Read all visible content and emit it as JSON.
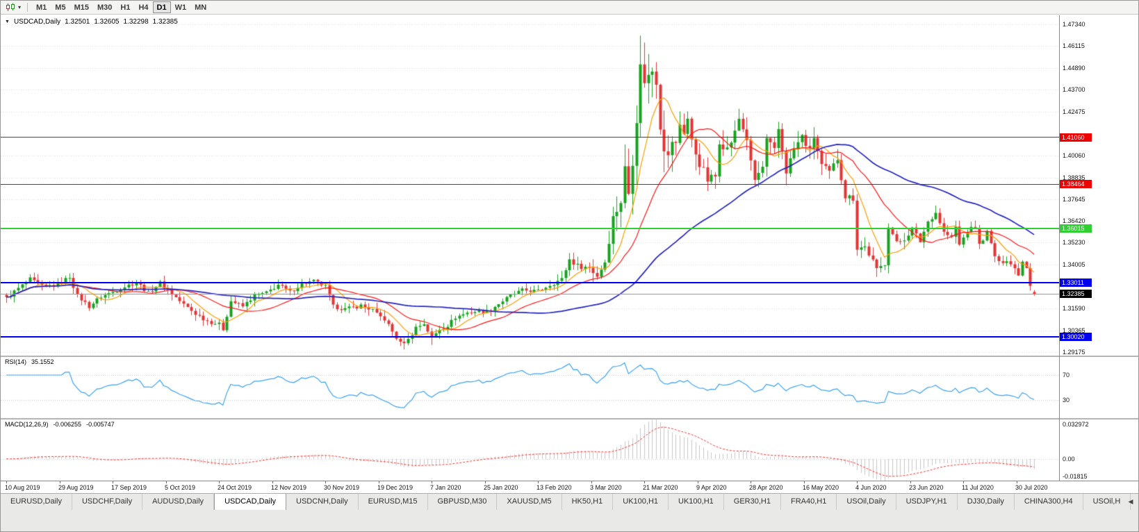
{
  "toolbar": {
    "timeframes": [
      "M1",
      "M5",
      "M15",
      "M30",
      "H1",
      "H4",
      "D1",
      "W1",
      "MN"
    ],
    "active_timeframe": "D1"
  },
  "chart": {
    "ohlc_line": {
      "symbol": "USDCAD,Daily",
      "open": "1.32501",
      "high": "1.32605",
      "low": "1.32298",
      "close": "1.32385"
    }
  },
  "indicators": {
    "rsi": {
      "label": "RSI(14)",
      "value": "35.1552",
      "period": 14,
      "axis_labels": [
        "70",
        "30"
      ],
      "line_color": "#3aa0f0"
    },
    "macd": {
      "label": "MACD(12,26,9)",
      "value_main": "-0.006255",
      "value_signal": "-0.005747",
      "fast": 12,
      "slow": 26,
      "signal": 9,
      "axis_labels": [
        "0.032972",
        "0.00",
        "-0.01815"
      ],
      "hist_color": "#c6c6c6",
      "signal_color": "#ff2d2d"
    }
  },
  "tabs": {
    "active": "USDCAD,Daily",
    "items": [
      "EURUSD,Daily",
      "USDCHF,Daily",
      "AUDUSD,Daily",
      "USDCAD,Daily",
      "USDCNH,Daily",
      "EURUSD,M15",
      "GBPUSD,M30",
      "XAUUSD,M5",
      "HK50,H1",
      "UK100,H1",
      "UK100,H1",
      "GER30,H1",
      "FRA40,H1",
      "USOil,Daily",
      "USDJPY,H1",
      "DJ30,Daily",
      "CHINA300,H4",
      "USOil,H"
    ],
    "scroll_left_icon": "◀"
  },
  "chart_data": {
    "type": "candlestick",
    "symbol": "USDCAD",
    "timeframe": "Daily",
    "candle_count": 262,
    "current_price": 1.32385,
    "up_color": "#17a21f",
    "down_color": "#e23535",
    "y_axis_labels": [
      "1.47340",
      "1.46115",
      "1.44890",
      "1.43700",
      "1.42475",
      "1.40060",
      "1.38835",
      "1.37645",
      "1.36420",
      "1.35230",
      "1.34005",
      "1.31590",
      "1.30365",
      "1.29175"
    ],
    "x_labels": [
      "10 Aug 2019",
      "29 Aug 2019",
      "17 Sep 2019",
      "5 Oct 2019",
      "24 Oct 2019",
      "12 Nov 2019",
      "30 Nov 2019",
      "19 Dec 2019",
      "7 Jan 2020",
      "25 Jan 2020",
      "13 Feb 2020",
      "3 Mar 2020",
      "21 Mar 2020",
      "9 Apr 2020",
      "28 Apr 2020",
      "16 May 2020",
      "4 Jun 2020",
      "23 Jun 2020",
      "11 Jul 2020",
      "30 Jul 2020"
    ],
    "levels": [
      {
        "price": 1.4106,
        "color": "#ee0000",
        "width": 1
      },
      {
        "price": 1.38464,
        "color": "#ee0000",
        "width": 1
      },
      {
        "price": 1.36015,
        "color": "#2fd032",
        "width": 2
      },
      {
        "price": 1.33011,
        "color": "#0000ee",
        "width": 2
      },
      {
        "price": 1.3002,
        "color": "#0000ee",
        "width": 2
      }
    ],
    "extreme_high": {
      "index": 161,
      "price": 1.4669
    },
    "extreme_low": {
      "index": 100,
      "price": 1.2951
    },
    "last_candle": {
      "o": 1.32501,
      "h": 1.32605,
      "l": 1.32298,
      "c": 1.32385
    },
    "overrides": [
      {
        "i": 161,
        "h": 1.4669
      },
      {
        "i": 100,
        "l": 1.2951
      },
      {
        "i": 108,
        "l": 1.2957
      }
    ],
    "moving_averages": [
      {
        "name": "fast",
        "period": 8,
        "color": "#ff9b00",
        "width": 1.2
      },
      {
        "name": "medium",
        "period": 20,
        "color": "#ff1414",
        "width": 1.2
      },
      {
        "name": "slow",
        "period": 55,
        "color": "#2424bd",
        "width": 1.7
      }
    ],
    "volatility_anchors": [
      [
        0,
        0.0045
      ],
      [
        54,
        0.0045
      ],
      [
        80,
        0.004
      ],
      [
        96,
        0.005
      ],
      [
        110,
        0.0042
      ],
      [
        135,
        0.004
      ],
      [
        146,
        0.006
      ],
      [
        152,
        0.009
      ],
      [
        158,
        0.0165
      ],
      [
        163,
        0.0185
      ],
      [
        168,
        0.015
      ],
      [
        175,
        0.0115
      ],
      [
        185,
        0.0095
      ],
      [
        200,
        0.0085
      ],
      [
        212,
        0.0075
      ],
      [
        220,
        0.0065
      ],
      [
        232,
        0.0052
      ],
      [
        245,
        0.0048
      ],
      [
        261,
        0.0042
      ]
    ],
    "close_anchors": [
      [
        0,
        1.3215
      ],
      [
        3,
        1.327
      ],
      [
        6,
        1.332
      ],
      [
        9,
        1.328
      ],
      [
        13,
        1.329
      ],
      [
        16,
        1.3335
      ],
      [
        18,
        1.323
      ],
      [
        21,
        1.317
      ],
      [
        24,
        1.3225
      ],
      [
        27,
        1.325
      ],
      [
        30,
        1.328
      ],
      [
        33,
        1.3305
      ],
      [
        36,
        1.3245
      ],
      [
        39,
        1.33
      ],
      [
        42,
        1.324
      ],
      [
        45,
        1.318
      ],
      [
        48,
        1.313
      ],
      [
        51,
        1.309
      ],
      [
        54,
        1.307
      ],
      [
        55,
        1.3045
      ],
      [
        57,
        1.32
      ],
      [
        60,
        1.317
      ],
      [
        63,
        1.323
      ],
      [
        66,
        1.3245
      ],
      [
        69,
        1.329
      ],
      [
        72,
        1.325
      ],
      [
        75,
        1.3295
      ],
      [
        78,
        1.331
      ],
      [
        81,
        1.328
      ],
      [
        83,
        1.317
      ],
      [
        86,
        1.3155
      ],
      [
        90,
        1.3175
      ],
      [
        93,
        1.315
      ],
      [
        94,
        1.3125
      ],
      [
        96,
        1.31
      ],
      [
        98,
        1.303
      ],
      [
        100,
        1.2965
      ],
      [
        102,
        1.2985
      ],
      [
        104,
        1.3055
      ],
      [
        106,
        1.3075
      ],
      [
        108,
        1.2995
      ],
      [
        110,
        1.3045
      ],
      [
        112,
        1.3065
      ],
      [
        114,
        1.311
      ],
      [
        117,
        1.3135
      ],
      [
        120,
        1.3145
      ],
      [
        122,
        1.314
      ],
      [
        125,
        1.3185
      ],
      [
        128,
        1.323
      ],
      [
        131,
        1.326
      ],
      [
        135,
        1.3255
      ],
      [
        138,
        1.329
      ],
      [
        141,
        1.332
      ],
      [
        143,
        1.343
      ],
      [
        145,
        1.3395
      ],
      [
        148,
        1.3385
      ],
      [
        150,
        1.334
      ],
      [
        152,
        1.342
      ],
      [
        154,
        1.366
      ],
      [
        156,
        1.3755
      ],
      [
        157,
        1.393
      ],
      [
        158,
        1.38
      ],
      [
        159,
        1.399
      ],
      [
        160,
        1.422
      ],
      [
        161,
        1.449
      ],
      [
        162,
        1.443
      ],
      [
        163,
        1.444
      ],
      [
        164,
        1.448
      ],
      [
        165,
        1.443
      ],
      [
        166,
        1.418
      ],
      [
        167,
        1.406
      ],
      [
        168,
        1.399
      ],
      [
        169,
        1.409
      ],
      [
        170,
        1.406
      ],
      [
        171,
        1.418
      ],
      [
        172,
        1.414
      ],
      [
        173,
        1.421
      ],
      [
        174,
        1.408
      ],
      [
        175,
        1.402
      ],
      [
        176,
        1.3965
      ],
      [
        178,
        1.387
      ],
      [
        180,
        1.389
      ],
      [
        181,
        1.409
      ],
      [
        183,
        1.404
      ],
      [
        185,
        1.413
      ],
      [
        186,
        1.421
      ],
      [
        188,
        1.41
      ],
      [
        189,
        1.396
      ],
      [
        190,
        1.387
      ],
      [
        192,
        1.394
      ],
      [
        193,
        1.409
      ],
      [
        195,
        1.403
      ],
      [
        196,
        1.415
      ],
      [
        198,
        1.392
      ],
      [
        200,
        1.404
      ],
      [
        202,
        1.411
      ],
      [
        204,
        1.403
      ],
      [
        205,
        1.411
      ],
      [
        207,
        1.395
      ],
      [
        209,
        1.391
      ],
      [
        211,
        1.399
      ],
      [
        213,
        1.378
      ],
      [
        215,
        1.377
      ],
      [
        216,
        1.3495
      ],
      [
        218,
        1.35
      ],
      [
        220,
        1.342
      ],
      [
        221,
        1.337
      ],
      [
        223,
        1.341
      ],
      [
        224,
        1.362
      ],
      [
        226,
        1.352
      ],
      [
        228,
        1.3545
      ],
      [
        230,
        1.36
      ],
      [
        232,
        1.353
      ],
      [
        234,
        1.364
      ],
      [
        236,
        1.369
      ],
      [
        238,
        1.358
      ],
      [
        240,
        1.355
      ],
      [
        241,
        1.361
      ],
      [
        242,
        1.351
      ],
      [
        244,
        1.359
      ],
      [
        246,
        1.361
      ],
      [
        247,
        1.351
      ],
      [
        249,
        1.358
      ],
      [
        251,
        1.345
      ],
      [
        252,
        1.341
      ],
      [
        254,
        1.343
      ],
      [
        256,
        1.338
      ],
      [
        257,
        1.335
      ],
      [
        258,
        1.342
      ],
      [
        259,
        1.339
      ],
      [
        260,
        1.329
      ],
      [
        261,
        1.32385
      ]
    ]
  }
}
